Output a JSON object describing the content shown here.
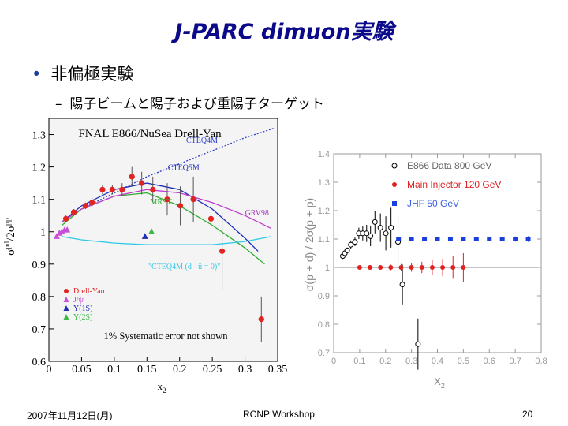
{
  "slide": {
    "title": "J-PARC dimuon実験",
    "bullet": "非偏極実験",
    "sub_bullet": "陽子ビームと陽子および重陽子ターゲット",
    "footer_date": "2007年11月12日(月)",
    "footer_center": "RCNP Workshop",
    "footer_page": "20"
  },
  "chart_data": [
    {
      "type": "scatter",
      "title": "FNAL E866/NuSea Drell-Yan",
      "xlabel": "x2",
      "ylabel": "σpd/2σpp",
      "xlim": [
        0,
        0.35
      ],
      "ylim": [
        0.6,
        1.35
      ],
      "x_ticks": [
        "0",
        "0.05",
        "0.1",
        "0.15",
        "0.2",
        "0.25",
        "0.3",
        "0.35"
      ],
      "y_ticks": [
        "0.6",
        "0.7",
        "0.8",
        "0.9",
        "1",
        "1.1",
        "1.2",
        "1.3"
      ],
      "curves": [
        {
          "name": "CTEQ4M",
          "color": "#2b3fc7",
          "style": "dotted",
          "x": [
            0.02,
            0.05,
            0.1,
            0.15,
            0.2,
            0.25,
            0.3,
            0.345
          ],
          "y": [
            1.03,
            1.07,
            1.12,
            1.17,
            1.21,
            1.25,
            1.29,
            1.32
          ]
        },
        {
          "name": "CTEQ5M",
          "color": "#1f2fb8",
          "style": "solid",
          "x": [
            0.02,
            0.05,
            0.1,
            0.15,
            0.2,
            0.25,
            0.3,
            0.32
          ],
          "y": [
            1.03,
            1.08,
            1.13,
            1.15,
            1.13,
            1.07,
            0.98,
            0.94
          ]
        },
        {
          "name": "MRST",
          "color": "#2fae2f",
          "style": "solid",
          "x": [
            0.02,
            0.05,
            0.1,
            0.15,
            0.2,
            0.25,
            0.3,
            0.33
          ],
          "y": [
            1.02,
            1.07,
            1.11,
            1.12,
            1.08,
            1.02,
            0.95,
            0.9
          ]
        },
        {
          "name": "GRV98",
          "color": "#c23ccf",
          "style": "solid",
          "x": [
            0.02,
            0.05,
            0.1,
            0.15,
            0.2,
            0.25,
            0.3,
            0.34
          ],
          "y": [
            1.03,
            1.07,
            1.11,
            1.13,
            1.12,
            1.09,
            1.05,
            1.01
          ]
        },
        {
          "name": "\"CTEQ4M (d - ū = 0)\"",
          "color": "#2ec9e6",
          "style": "solid",
          "x": [
            0.02,
            0.05,
            0.1,
            0.15,
            0.2,
            0.25,
            0.3,
            0.34
          ],
          "y": [
            0.985,
            0.975,
            0.965,
            0.96,
            0.96,
            0.96,
            0.97,
            0.985
          ]
        }
      ],
      "series": [
        {
          "name": "Drell-Yan",
          "color": "#e32222",
          "marker": "circle",
          "x": [
            0.026,
            0.038,
            0.056,
            0.066,
            0.082,
            0.097,
            0.112,
            0.127,
            0.142,
            0.159,
            0.181,
            0.201,
            0.221,
            0.248,
            0.265,
            0.325
          ],
          "y": [
            1.04,
            1.06,
            1.08,
            1.09,
            1.13,
            1.13,
            1.13,
            1.17,
            1.15,
            1.13,
            1.1,
            1.08,
            1.1,
            1.04,
            0.94,
            0.73
          ],
          "err": [
            0.01,
            0.01,
            0.01,
            0.015,
            0.015,
            0.015,
            0.02,
            0.03,
            0.035,
            0.04,
            0.05,
            0.06,
            0.07,
            0.09,
            0.12,
            0.07
          ]
        },
        {
          "name": "J/ψ",
          "color": "#c74fd8",
          "marker": "triangle",
          "x": [
            0.012,
            0.016,
            0.02,
            0.024,
            0.028
          ],
          "y": [
            0.985,
            0.995,
            1.0,
            1.005,
            1.005
          ]
        },
        {
          "name": "Υ(1S)",
          "color": "#1d2fb0",
          "marker": "triangle",
          "x": [
            0.147
          ],
          "y": [
            0.985
          ]
        },
        {
          "name": "Υ(2S)",
          "color": "#3cb845",
          "marker": "triangle",
          "x": [
            0.157
          ],
          "y": [
            1.0
          ]
        }
      ],
      "legend": [
        "Drell-Yan",
        "J/ψ",
        "Υ(1S)",
        "Υ(2S)"
      ],
      "annotation": "1% Systematic error not shown"
    },
    {
      "type": "scatter",
      "title": "",
      "xlabel": "X2",
      "ylabel": "σ(p + d) / 2σ(p + p)",
      "xlim": [
        0,
        0.8
      ],
      "ylim": [
        0.7,
        1.4
      ],
      "x_ticks": [
        "0",
        "0.1",
        "0.2",
        "0.3",
        "0.4",
        "0.5",
        "0.6",
        "0.7",
        "0.8"
      ],
      "y_ticks": [
        "0.7",
        "0.8",
        "0.9",
        "1",
        "1.1",
        "1.2",
        "1.3",
        "1.4"
      ],
      "legend": [
        "E866 Data 800 GeV",
        "Main Injector 120 GeV",
        "JHF 50 GeV"
      ],
      "series": [
        {
          "name": "E866 Data 800 GeV",
          "color": "#000000",
          "marker": "open-circle",
          "x": [
            0.035,
            0.043,
            0.052,
            0.066,
            0.082,
            0.097,
            0.112,
            0.127,
            0.142,
            0.159,
            0.18,
            0.201,
            0.221,
            0.248,
            0.265,
            0.325
          ],
          "y": [
            1.04,
            1.05,
            1.06,
            1.08,
            1.09,
            1.12,
            1.12,
            1.12,
            1.11,
            1.16,
            1.14,
            1.12,
            1.14,
            1.09,
            0.94,
            0.73
          ],
          "err": [
            0.01,
            0.01,
            0.01,
            0.015,
            0.015,
            0.02,
            0.025,
            0.03,
            0.035,
            0.04,
            0.05,
            0.06,
            0.07,
            0.09,
            0.07,
            0.09
          ]
        },
        {
          "name": "Main Injector 120 GeV",
          "color": "#e12020",
          "marker": "circle",
          "x": [
            0.1,
            0.14,
            0.18,
            0.22,
            0.26,
            0.3,
            0.34,
            0.38,
            0.42,
            0.46,
            0.5
          ],
          "y": [
            1.0,
            1.0,
            1.0,
            1.0,
            1.0,
            1.0,
            1.0,
            1.0,
            1.0,
            1.0,
            1.0
          ],
          "err": [
            0.005,
            0.005,
            0.007,
            0.01,
            0.012,
            0.015,
            0.02,
            0.025,
            0.03,
            0.04,
            0.05
          ]
        },
        {
          "name": "JHF 50 GeV",
          "color": "#1a3fe0",
          "marker": "square",
          "x": [
            0.25,
            0.3,
            0.35,
            0.4,
            0.45,
            0.5,
            0.55,
            0.6,
            0.65,
            0.7,
            0.75
          ],
          "y": [
            1.1,
            1.1,
            1.1,
            1.1,
            1.1,
            1.1,
            1.1,
            1.1,
            1.1,
            1.1,
            1.1
          ],
          "err": [
            0.003,
            0.003,
            0.004,
            0.004,
            0.005,
            0.005,
            0.006,
            0.007,
            0.008,
            0.009,
            0.01
          ]
        }
      ]
    }
  ]
}
